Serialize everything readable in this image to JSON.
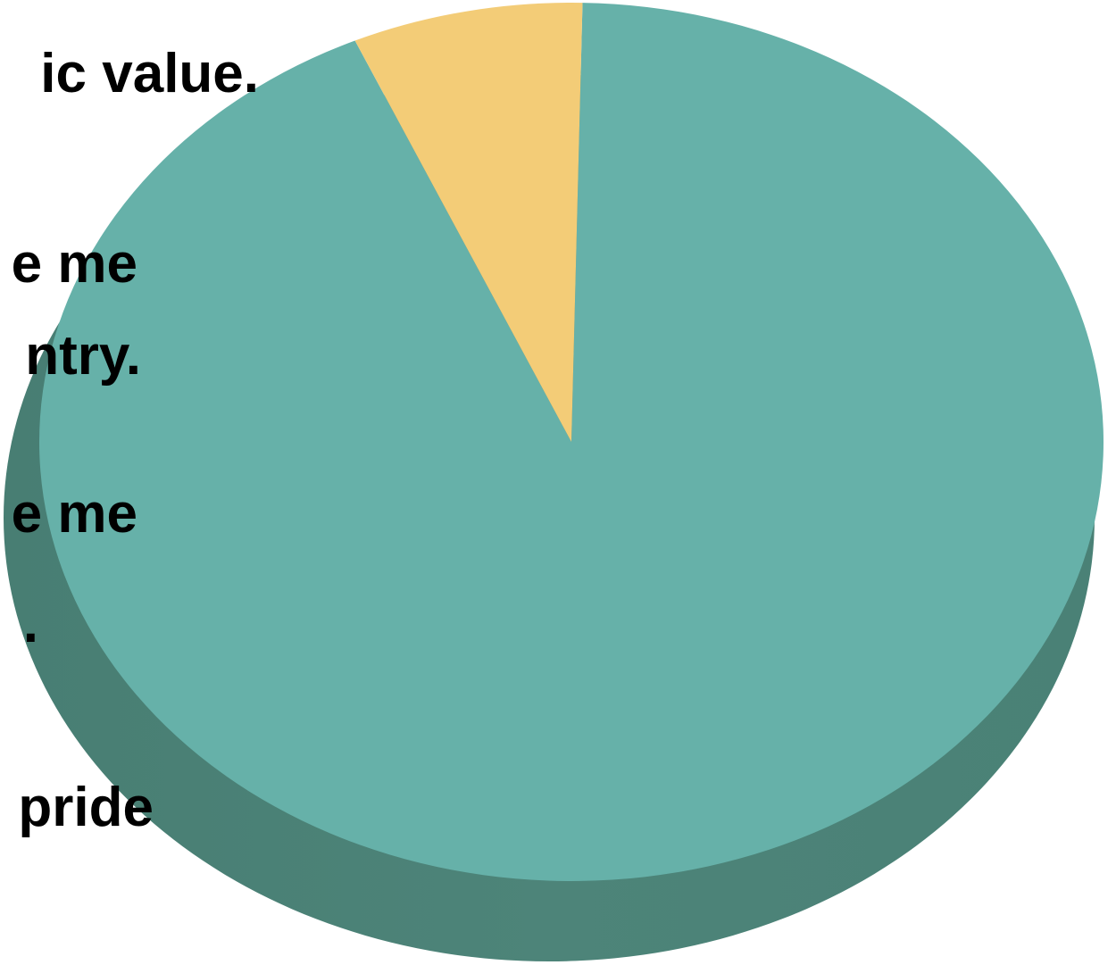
{
  "chart_data": {
    "type": "pie",
    "style": "3d",
    "values": [
      93,
      7
    ],
    "colors": [
      "#66b1a9",
      "#f3cc77"
    ],
    "side_color": "#4a8278",
    "text_fragments": [
      "ic value.",
      "e me",
      "ntry.",
      "e me",
      ".",
      "pride"
    ]
  }
}
